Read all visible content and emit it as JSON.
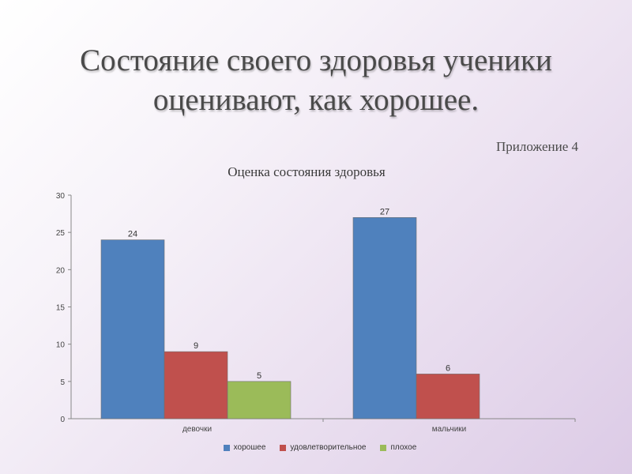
{
  "slide": {
    "title": "Состояние своего здоровья ученики оценивают, как хорошее.",
    "appendix": "Приложение 4"
  },
  "chart_data": {
    "type": "bar",
    "title": "Оценка состояния здоровья",
    "categories": [
      "девочки",
      "мальчики"
    ],
    "series": [
      {
        "name": "хорошее",
        "values": [
          24,
          27
        ],
        "color": "#4F81BD"
      },
      {
        "name": "удовлетворительное",
        "values": [
          9,
          6
        ],
        "color": "#C0504D"
      },
      {
        "name": "плохое",
        "values": [
          5,
          null
        ],
        "color": "#9BBB59"
      }
    ],
    "ylim": [
      0,
      30
    ],
    "yticks": [
      0,
      5,
      10,
      15,
      20,
      25,
      30
    ],
    "xlabel": "",
    "ylabel": "",
    "grid": false,
    "legend_position": "bottom"
  }
}
